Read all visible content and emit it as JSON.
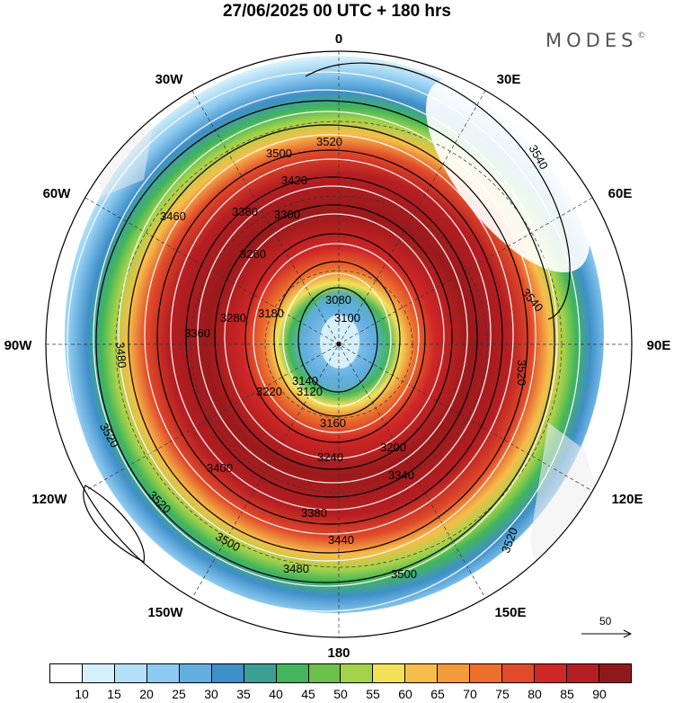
{
  "title": "27/06/2025  00 UTC  + 180 hrs",
  "brand": "MODES",
  "brand_mark": "©",
  "longitude_labels": {
    "top": "0",
    "top_left": "30W",
    "top_right": "30E",
    "left_upper": "60W",
    "right_upper": "60E",
    "left": "90W",
    "right": "90E",
    "left_lower": "120W",
    "right_lower": "120E",
    "bottom_left": "150W",
    "bottom_right": "150E",
    "bottom": "180"
  },
  "contour_labels": [
    "3520",
    "3500",
    "3540",
    "3480",
    "3460",
    "3420",
    "3400",
    "3380",
    "3360",
    "3340",
    "3300",
    "3280",
    "3260",
    "3240",
    "3220",
    "3200",
    "3180",
    "3160",
    "3140",
    "3120",
    "3100",
    "3080",
    "3440"
  ],
  "reference_vector": "50",
  "colorbar": {
    "colors": [
      "#ffffff",
      "#d6f0fb",
      "#b4e0f7",
      "#8ccaf0",
      "#62aedf",
      "#3f8fc9",
      "#3c9f94",
      "#43b55a",
      "#6bc14a",
      "#a3d24a",
      "#f3e05a",
      "#f7bd4a",
      "#f39a3b",
      "#ec6f2e",
      "#e04a2a",
      "#cf2626",
      "#b51e22",
      "#8f1a1c"
    ],
    "labels": [
      "10",
      "15",
      "20",
      "25",
      "30",
      "35",
      "40",
      "45",
      "50",
      "55",
      "60",
      "65",
      "70",
      "75",
      "80",
      "85",
      "90"
    ]
  }
}
